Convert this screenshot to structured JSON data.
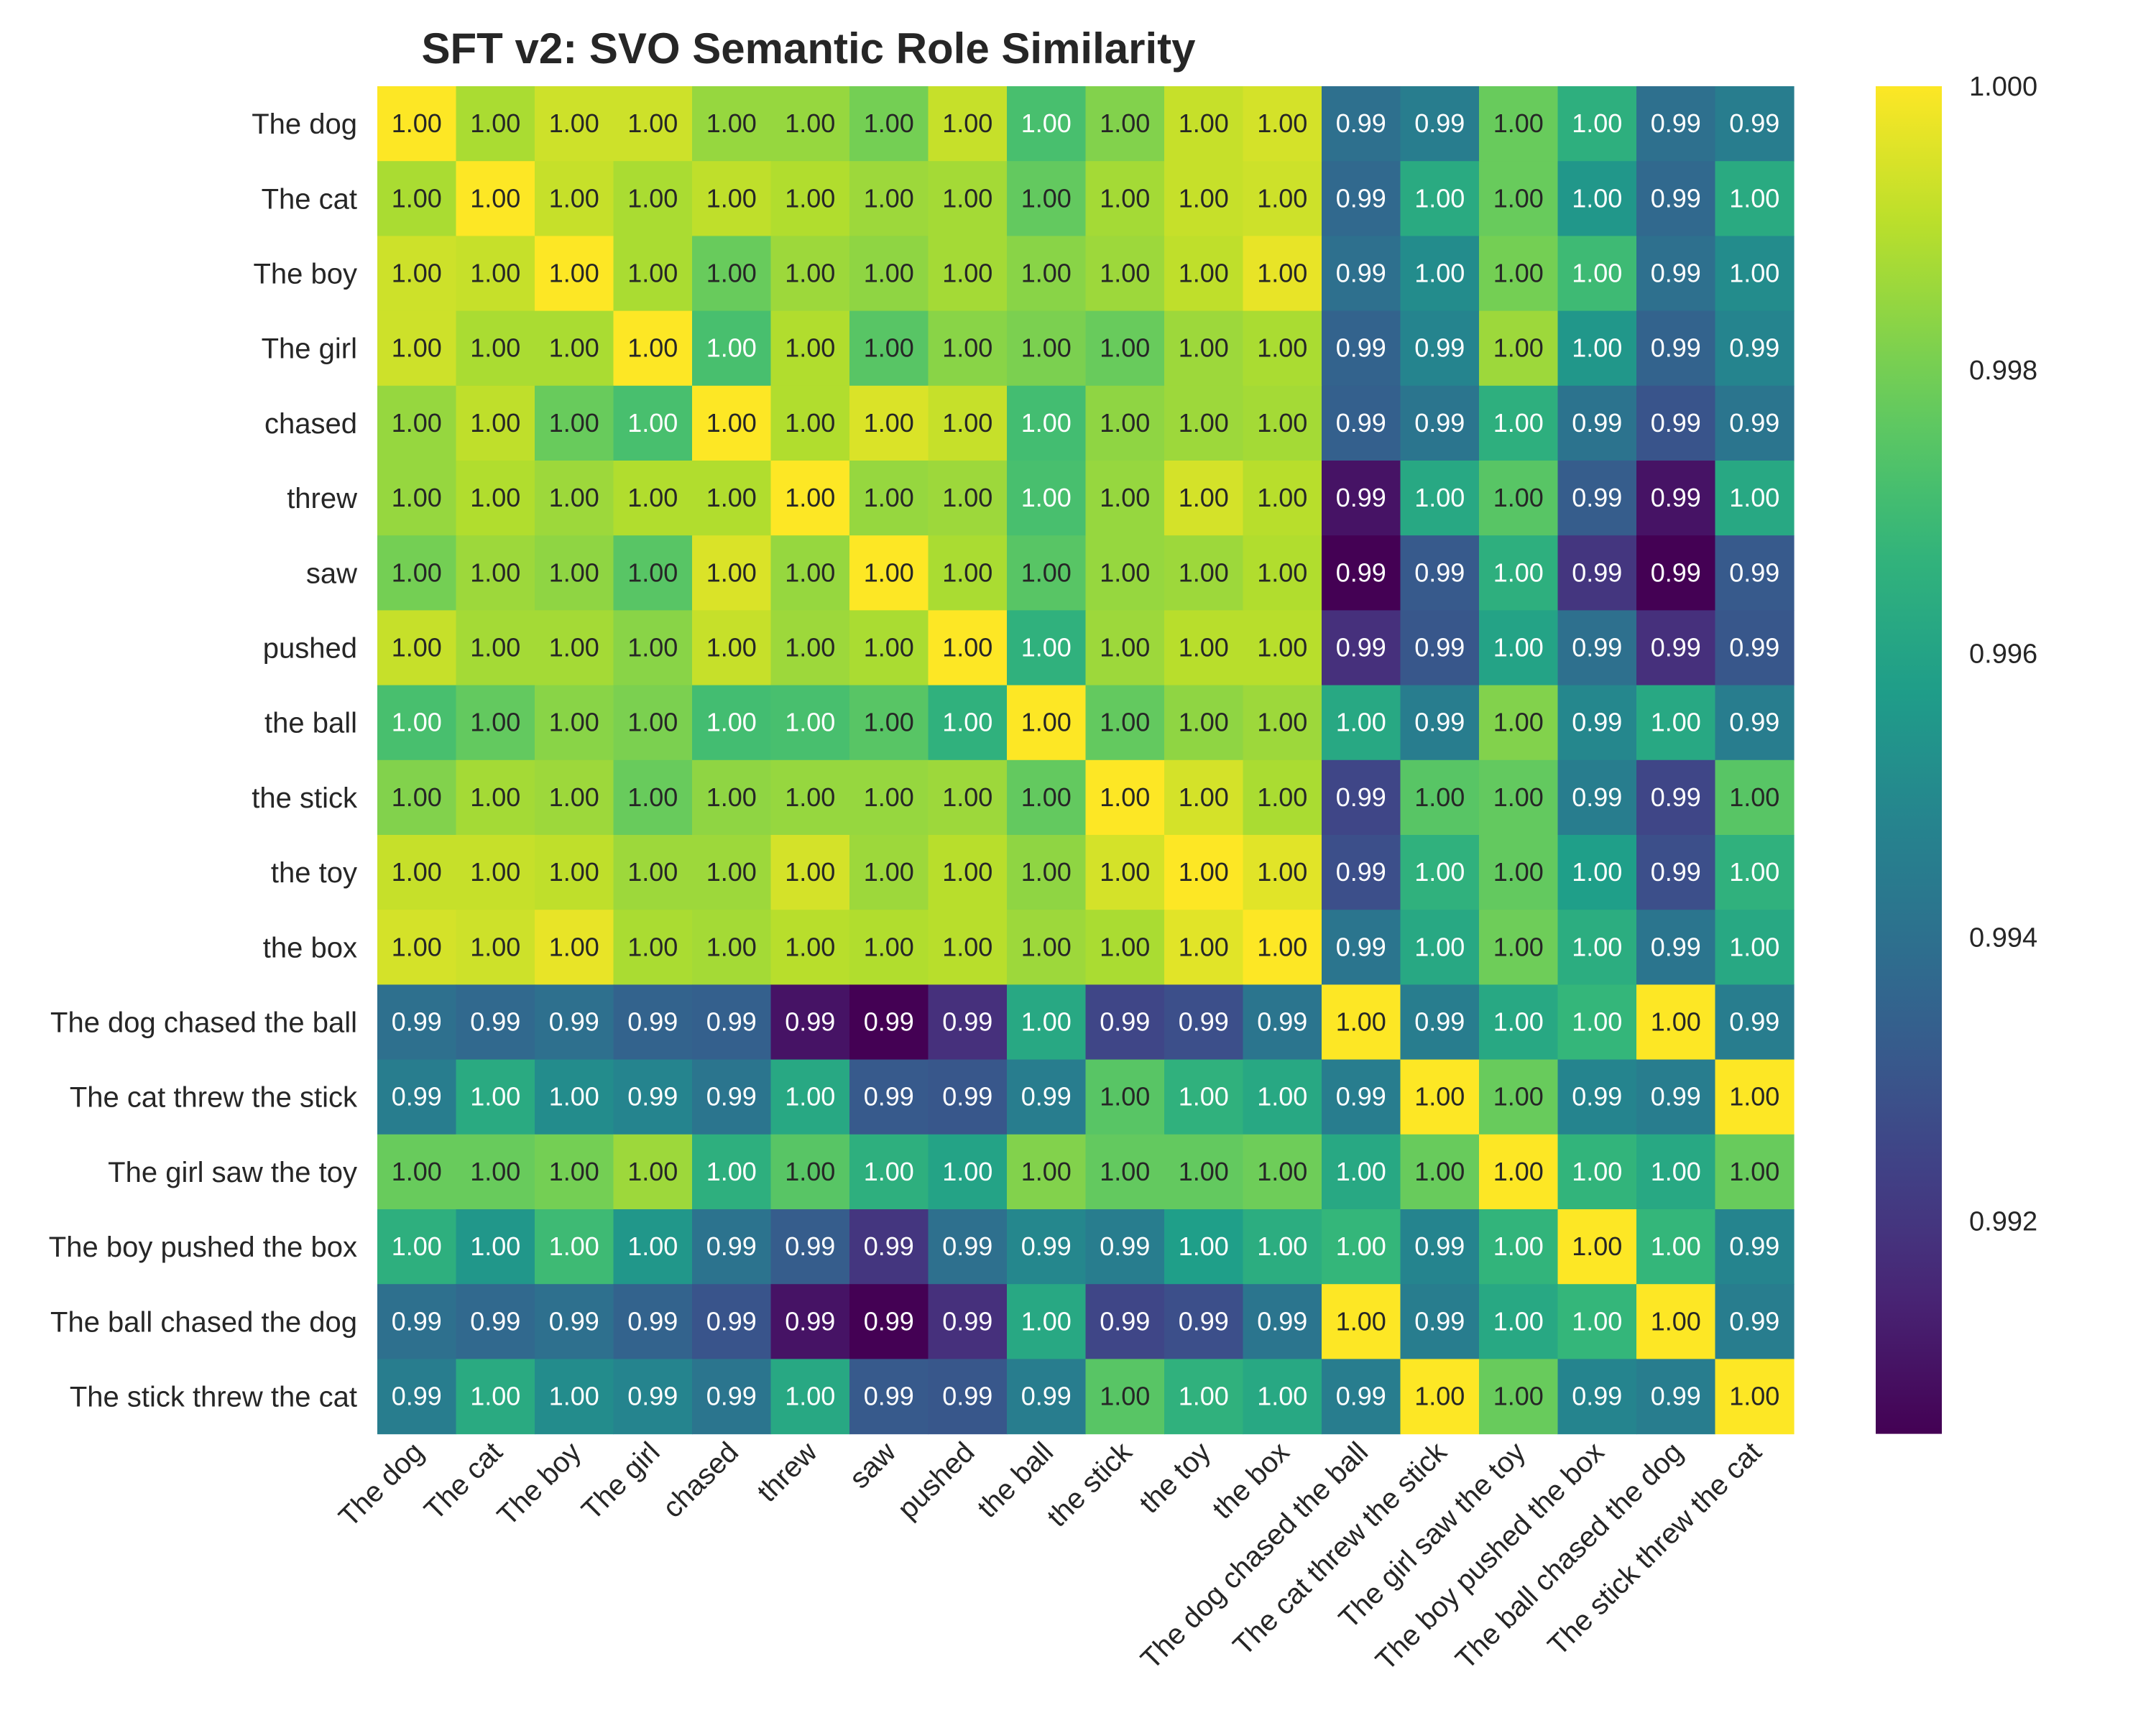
{
  "chart_data": {
    "type": "heatmap",
    "title": "SFT v2: SVO Semantic Role Similarity",
    "xlabel": "",
    "ylabel": "",
    "colormap": "viridis",
    "value_format": "2 decimals",
    "labels": [
      "The dog",
      "The cat",
      "The boy",
      "The girl",
      "chased",
      "threw",
      "saw",
      "pushed",
      "the ball",
      "the stick",
      "the toy",
      "the box",
      "The dog chased the ball",
      "The cat threw the stick",
      "The girl saw the toy",
      "The boy pushed the box",
      "The ball chased the dog",
      "The stick threw the cat"
    ],
    "values": [
      [
        1.0,
        0.9988,
        0.9993,
        0.9993,
        0.9985,
        0.9985,
        0.998,
        0.9992,
        0.9972,
        0.9982,
        0.9992,
        0.9994,
        0.994,
        0.9945,
        0.9978,
        0.9965,
        0.994,
        0.9945
      ],
      [
        0.9988,
        1.0,
        0.9992,
        0.9988,
        0.9991,
        0.9989,
        0.9986,
        0.9987,
        0.9977,
        0.9987,
        0.9992,
        0.9993,
        0.9937,
        0.9963,
        0.9978,
        0.9955,
        0.9937,
        0.9963
      ],
      [
        0.9993,
        0.9992,
        1.0,
        0.9988,
        0.9978,
        0.9986,
        0.9984,
        0.9987,
        0.9983,
        0.9986,
        0.9991,
        0.9997,
        0.994,
        0.9951,
        0.998,
        0.997,
        0.994,
        0.9951
      ],
      [
        0.9993,
        0.9988,
        0.9988,
        1.0,
        0.9972,
        0.9989,
        0.9975,
        0.9983,
        0.9981,
        0.9978,
        0.9986,
        0.9988,
        0.9935,
        0.9948,
        0.9986,
        0.9955,
        0.9935,
        0.9948
      ],
      [
        0.9985,
        0.9991,
        0.9978,
        0.9972,
        1.0,
        0.9989,
        0.9995,
        0.9992,
        0.9971,
        0.9984,
        0.9986,
        0.9987,
        0.9934,
        0.9942,
        0.9965,
        0.9941,
        0.993,
        0.9942
      ],
      [
        0.9985,
        0.9989,
        0.9986,
        0.9989,
        0.9989,
        1.0,
        0.9985,
        0.9986,
        0.9972,
        0.9985,
        0.9994,
        0.999,
        0.991,
        0.9962,
        0.9975,
        0.9933,
        0.991,
        0.9962
      ],
      [
        0.998,
        0.9986,
        0.9984,
        0.9975,
        0.9995,
        0.9985,
        1.0,
        0.9988,
        0.9975,
        0.9985,
        0.9986,
        0.9989,
        0.9905,
        0.9932,
        0.9965,
        0.992,
        0.9905,
        0.9932
      ],
      [
        0.9992,
        0.9987,
        0.9987,
        0.9983,
        0.9992,
        0.9986,
        0.9988,
        1.0,
        0.9966,
        0.9986,
        0.999,
        0.999,
        0.9918,
        0.9931,
        0.996,
        0.994,
        0.9918,
        0.9931
      ],
      [
        0.9972,
        0.9977,
        0.9983,
        0.9981,
        0.9971,
        0.9972,
        0.9975,
        0.9966,
        1.0,
        0.9977,
        0.9984,
        0.9986,
        0.9962,
        0.9945,
        0.9982,
        0.9949,
        0.9962,
        0.9945
      ],
      [
        0.9982,
        0.9987,
        0.9986,
        0.9978,
        0.9984,
        0.9985,
        0.9985,
        0.9986,
        0.9977,
        1.0,
        0.9994,
        0.9988,
        0.9925,
        0.9975,
        0.9977,
        0.9945,
        0.9925,
        0.9975
      ],
      [
        0.9992,
        0.9992,
        0.9991,
        0.9986,
        0.9986,
        0.9994,
        0.9986,
        0.999,
        0.9984,
        0.9994,
        1.0,
        0.9996,
        0.9928,
        0.9966,
        0.9977,
        0.9958,
        0.9928,
        0.9966
      ],
      [
        0.9994,
        0.9993,
        0.9997,
        0.9988,
        0.9987,
        0.999,
        0.9989,
        0.999,
        0.9986,
        0.9988,
        0.9996,
        1.0,
        0.9942,
        0.9962,
        0.9979,
        0.9964,
        0.9942,
        0.9962
      ],
      [
        0.994,
        0.9937,
        0.994,
        0.9935,
        0.9934,
        0.991,
        0.9905,
        0.9918,
        0.9962,
        0.9925,
        0.9928,
        0.9942,
        1.0,
        0.9945,
        0.9962,
        0.9968,
        1.0,
        0.9945
      ],
      [
        0.9945,
        0.9963,
        0.9951,
        0.9948,
        0.9942,
        0.9962,
        0.9932,
        0.9931,
        0.9945,
        0.9975,
        0.9966,
        0.9962,
        0.9945,
        1.0,
        0.9978,
        0.9948,
        0.9945,
        1.0
      ],
      [
        0.9978,
        0.9978,
        0.998,
        0.9986,
        0.9965,
        0.9975,
        0.9965,
        0.996,
        0.9982,
        0.9977,
        0.9977,
        0.9979,
        0.9962,
        0.9978,
        1.0,
        0.9967,
        0.9962,
        0.9978
      ],
      [
        0.9965,
        0.9955,
        0.997,
        0.9955,
        0.9941,
        0.9933,
        0.992,
        0.994,
        0.9949,
        0.9945,
        0.9958,
        0.9964,
        0.9968,
        0.9948,
        0.9967,
        1.0,
        0.9968,
        0.9948
      ],
      [
        0.994,
        0.9937,
        0.994,
        0.9935,
        0.993,
        0.991,
        0.9905,
        0.9918,
        0.9962,
        0.9925,
        0.9928,
        0.9942,
        1.0,
        0.9945,
        0.9962,
        0.9968,
        1.0,
        0.9945
      ],
      [
        0.9945,
        0.9963,
        0.9951,
        0.9948,
        0.9942,
        0.9962,
        0.9932,
        0.9931,
        0.9945,
        0.9975,
        0.9966,
        0.9962,
        0.9945,
        1.0,
        0.9978,
        0.9948,
        0.9945,
        1.0
      ]
    ],
    "colorbar": {
      "vmin": 0.9905,
      "vmax": 1.0,
      "ticks": [
        0.992,
        0.994,
        0.996,
        0.998,
        1.0
      ],
      "tick_labels": [
        "0.992",
        "0.994",
        "0.996",
        "0.998",
        "1.000"
      ]
    }
  }
}
